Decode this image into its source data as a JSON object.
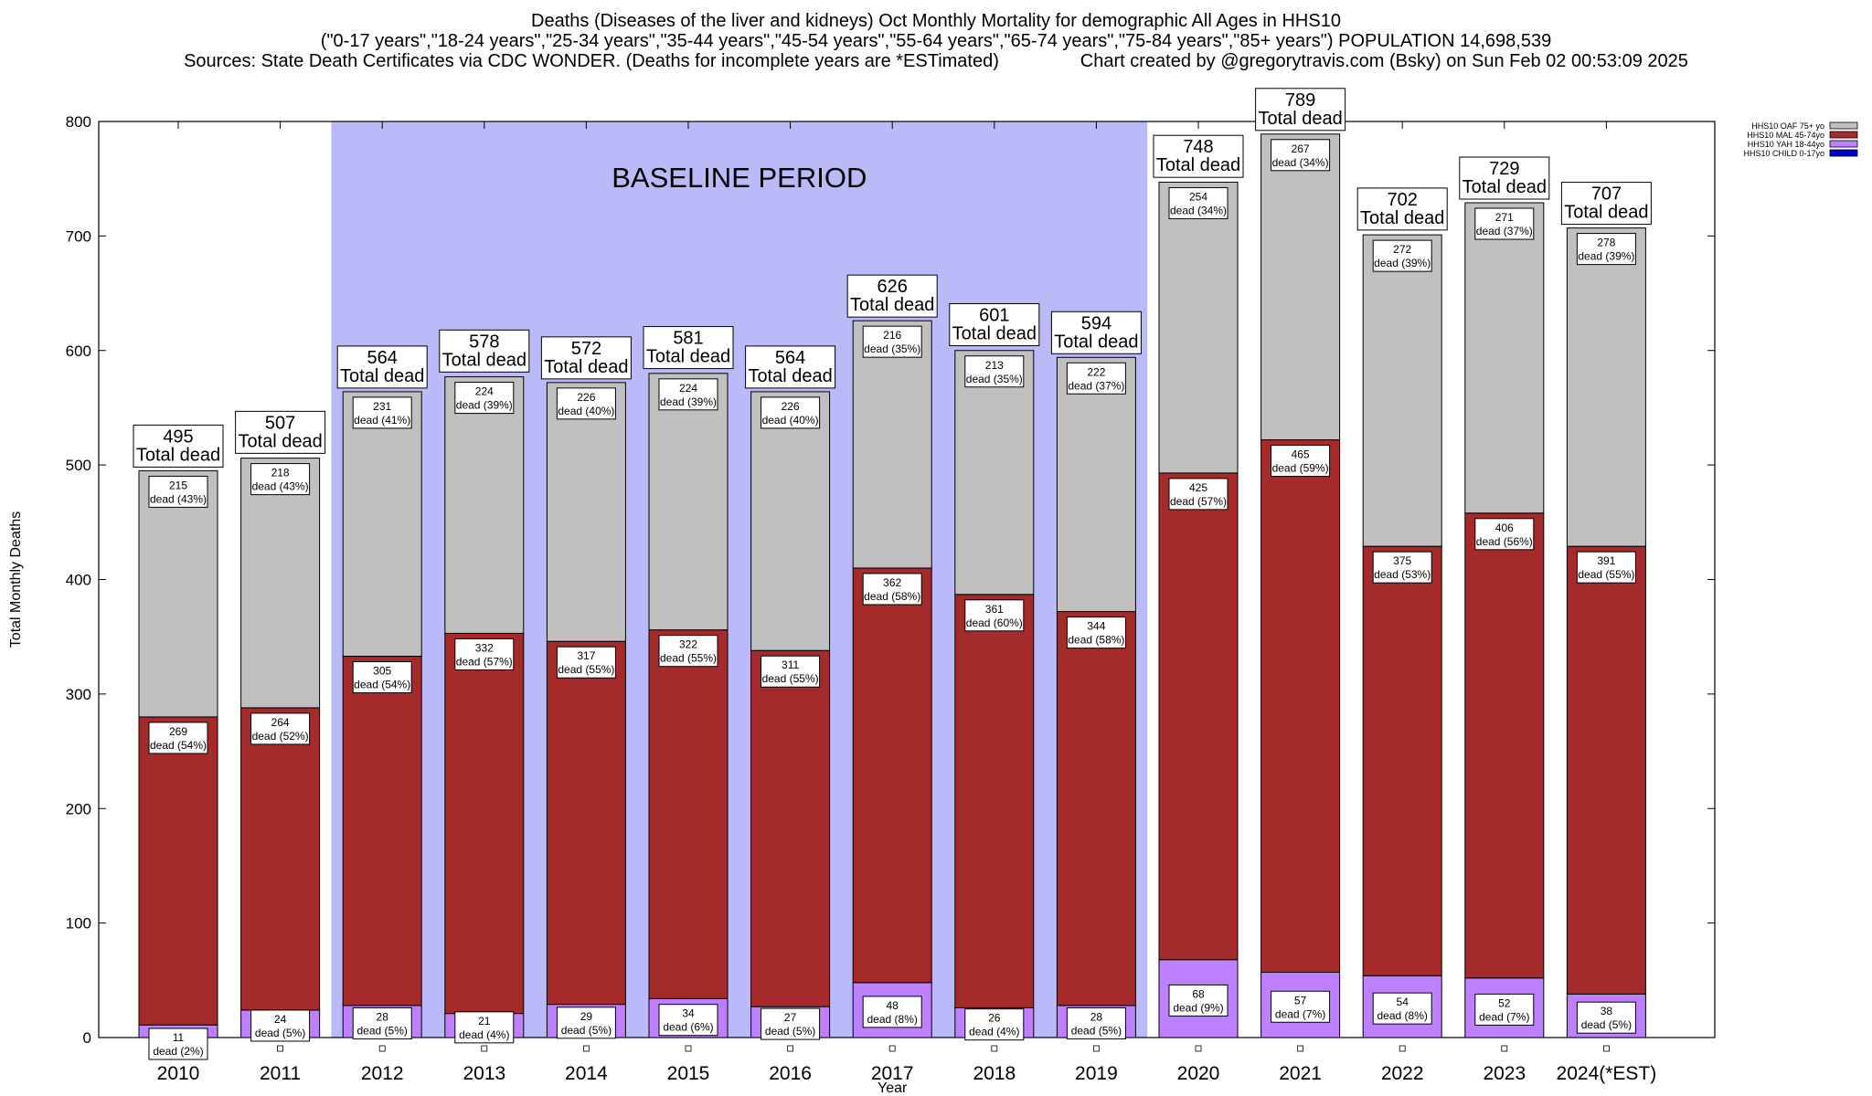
{
  "header": {
    "title": "Deaths (Diseases of the liver and kidneys) Oct Monthly Mortality for demographic All Ages in HHS10",
    "subtitle": "(\"0-17 years\",\"18-24 years\",\"25-34 years\",\"35-44 years\",\"45-54 years\",\"55-64 years\",\"65-74 years\",\"75-84 years\",\"85+ years\") POPULATION 14,698,539",
    "sources": "Sources: State Death Certificates via CDC WONDER. (Deaths for incomplete years are *ESTimated)",
    "credit": "Chart created by @gregorytravis.com (Bsky) on Sun Feb 02 00:53:09 2025"
  },
  "chart_data": {
    "type": "bar",
    "stacked": true,
    "title": "Deaths (Diseases of the liver and kidneys) Oct Monthly Mortality for demographic All Ages in HHS10",
    "xlabel": "Year",
    "ylabel": "Total Monthly Deaths",
    "ylim": [
      0,
      800
    ],
    "yticks": [
      0,
      100,
      200,
      300,
      400,
      500,
      600,
      700,
      800
    ],
    "legend_position": "top-right",
    "categories": [
      "2010",
      "2011",
      "2012",
      "2013",
      "2014",
      "2015",
      "2016",
      "2017",
      "2018",
      "2019",
      "2020",
      "2021",
      "2022",
      "2023",
      "2024(*EST)"
    ],
    "series": [
      {
        "name": "HHS10 CHILD 0-17yo",
        "color": "#0000cc",
        "values": [
          0,
          0,
          0,
          0,
          0,
          0,
          0,
          0,
          0,
          0,
          0,
          0,
          0,
          0,
          0
        ]
      },
      {
        "name": "HHS10 YAH 18-44yo",
        "color": "#bf80ff",
        "values": [
          11,
          24,
          28,
          21,
          29,
          34,
          27,
          48,
          26,
          28,
          68,
          57,
          54,
          52,
          38
        ]
      },
      {
        "name": "HHS10 MAL 45-74yo",
        "color": "#a52a2a",
        "values": [
          269,
          264,
          305,
          332,
          317,
          322,
          311,
          362,
          361,
          344,
          425,
          465,
          375,
          406,
          391
        ]
      },
      {
        "name": "HHS10 OAF 75+ yo",
        "color": "#c0c0c0",
        "values": [
          215,
          218,
          231,
          224,
          226,
          224,
          226,
          216,
          213,
          222,
          254,
          267,
          272,
          271,
          278
        ]
      }
    ],
    "segment_labels": {
      "HHS10 YAH 18-44yo": [
        "dead (2%)",
        "dead (5%)",
        "dead (5%)",
        "dead (4%)",
        "dead (5%)",
        "dead (6%)",
        "dead (5%)",
        "dead (8%)",
        "dead (4%)",
        "dead (5%)",
        "dead (9%)",
        "dead (7%)",
        "dead (8%)",
        "dead (7%)",
        "dead (5%)"
      ],
      "HHS10 MAL 45-74yo": [
        "dead (54%)",
        "dead (52%)",
        "dead (54%)",
        "dead (57%)",
        "dead (55%)",
        "dead (55%)",
        "dead (55%)",
        "dead (58%)",
        "dead (60%)",
        "dead (58%)",
        "dead (57%)",
        "dead (59%)",
        "dead (53%)",
        "dead (56%)",
        "dead (55%)"
      ],
      "HHS10 OAF 75+ yo": [
        "dead (43%)",
        "dead (43%)",
        "dead (41%)",
        "dead (39%)",
        "dead (40%)",
        "dead (39%)",
        "dead (40%)",
        "dead (35%)",
        "dead (35%)",
        "dead (37%)",
        "dead (34%)",
        "dead (34%)",
        "dead (39%)",
        "dead (37%)",
        "dead (39%)"
      ]
    },
    "totals": [
      495,
      507,
      564,
      578,
      572,
      581,
      564,
      626,
      601,
      594,
      748,
      789,
      702,
      729,
      707
    ],
    "total_suffix": "Total dead",
    "baseline": {
      "label": "BASELINE PERIOD",
      "start_category": "2012",
      "end_category": "2019",
      "color": "#babaf8"
    },
    "grid": false
  }
}
